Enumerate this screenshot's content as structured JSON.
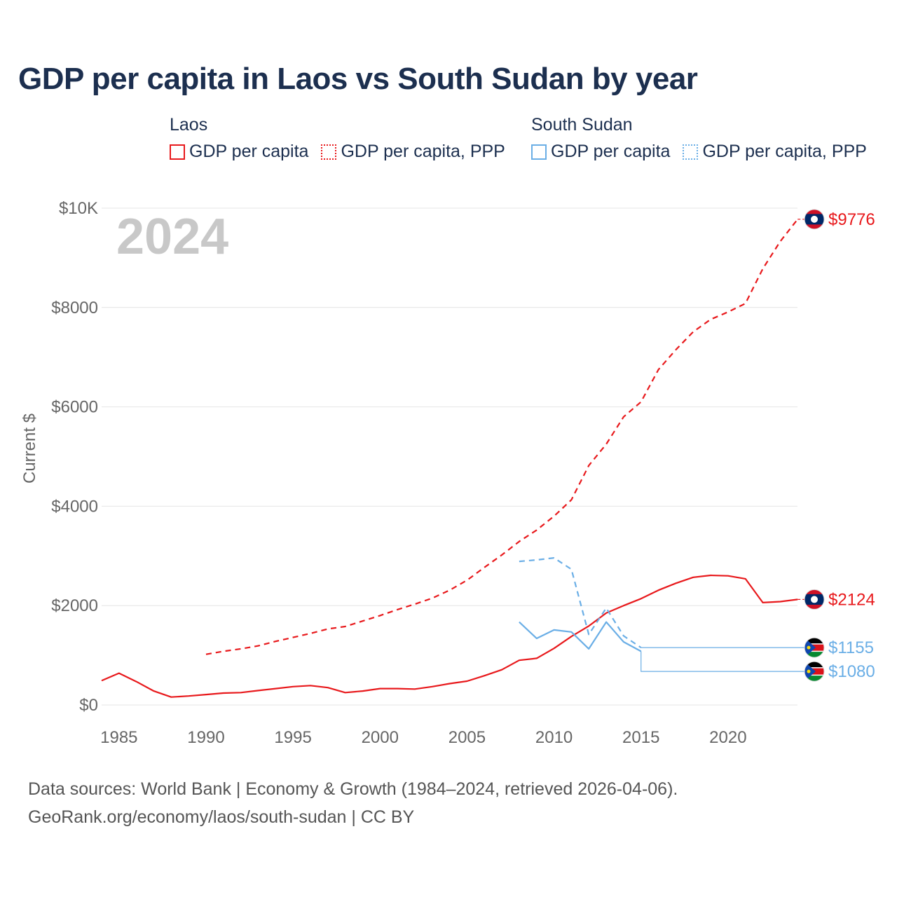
{
  "title": "GDP per capita in Laos vs South Sudan by year",
  "legend": [
    {
      "country": "Laos",
      "items": [
        {
          "label": "GDP per capita",
          "style": "solid",
          "color": "#e8191c"
        },
        {
          "label": "GDP per capita, PPP",
          "style": "dotted",
          "color": "#e8191c"
        }
      ]
    },
    {
      "country": "South Sudan",
      "items": [
        {
          "label": "GDP per capita",
          "style": "solid",
          "color": "#6aaee6"
        },
        {
          "label": "GDP per capita, PPP",
          "style": "dotted",
          "color": "#6aaee6"
        }
      ]
    }
  ],
  "footer": {
    "line1": "Data sources: World Bank | Economy & Growth (1984–2024, retrieved 2026-04-06).",
    "line2": "GeoRank.org/economy/laos/south-sudan | CC BY"
  },
  "chart_data": {
    "type": "line",
    "year_watermark": "2024",
    "ylabel": "Current $",
    "xlim": [
      1984,
      2024
    ],
    "ylim": [
      0,
      10000
    ],
    "xticks": [
      1985,
      1990,
      1995,
      2000,
      2005,
      2010,
      2015,
      2020
    ],
    "yticks": [
      {
        "value": 0,
        "label": "$0"
      },
      {
        "value": 2000,
        "label": "$2000"
      },
      {
        "value": 4000,
        "label": "$4000"
      },
      {
        "value": 6000,
        "label": "$6000"
      },
      {
        "value": 8000,
        "label": "$8000"
      },
      {
        "value": 10000,
        "label": "$10K"
      }
    ],
    "series": [
      {
        "name": "Laos GDP per capita, PPP",
        "country": "Laos",
        "color": "#e8191c",
        "dash": "8,6",
        "end_label": "$9776",
        "x": [
          1990,
          1991,
          1992,
          1993,
          1994,
          1995,
          1996,
          1997,
          1998,
          1999,
          2000,
          2001,
          2002,
          2003,
          2004,
          2005,
          2006,
          2007,
          2008,
          2009,
          2010,
          2011,
          2012,
          2013,
          2014,
          2015,
          2016,
          2017,
          2018,
          2019,
          2020,
          2021,
          2022,
          2023,
          2024
        ],
        "y": [
          1020,
          1080,
          1130,
          1190,
          1280,
          1360,
          1440,
          1530,
          1580,
          1690,
          1800,
          1920,
          2030,
          2150,
          2310,
          2510,
          2770,
          3020,
          3290,
          3520,
          3800,
          4130,
          4820,
          5250,
          5800,
          6100,
          6750,
          7150,
          7510,
          7760,
          7910,
          8080,
          8780,
          9330,
          9776
        ]
      },
      {
        "name": "Laos GDP per capita",
        "country": "Laos",
        "color": "#e8191c",
        "dash": "",
        "end_label": "$2124",
        "x": [
          1984,
          1985,
          1986,
          1987,
          1988,
          1989,
          1990,
          1991,
          1992,
          1993,
          1994,
          1995,
          1996,
          1997,
          1998,
          1999,
          2000,
          2001,
          2002,
          2003,
          2004,
          2005,
          2006,
          2007,
          2008,
          2009,
          2010,
          2011,
          2012,
          2013,
          2014,
          2015,
          2016,
          2017,
          2018,
          2019,
          2020,
          2021,
          2022,
          2023,
          2024
        ],
        "y": [
          490,
          640,
          470,
          280,
          160,
          180,
          210,
          240,
          250,
          290,
          330,
          370,
          390,
          350,
          250,
          280,
          330,
          330,
          320,
          370,
          430,
          480,
          590,
          710,
          900,
          940,
          1140,
          1380,
          1590,
          1850,
          2000,
          2140,
          2310,
          2450,
          2570,
          2610,
          2600,
          2540,
          2060,
          2080,
          2124
        ]
      },
      {
        "name": "South Sudan GDP per capita, PPP",
        "country": "South Sudan",
        "color": "#6aaee6",
        "dash": "8,6",
        "end_label": "$1155",
        "x": [
          2008,
          2009,
          2010,
          2011,
          2012,
          2013,
          2014,
          2015
        ],
        "y": [
          2890,
          2920,
          2960,
          2730,
          1420,
          1950,
          1390,
          1155
        ]
      },
      {
        "name": "South Sudan GDP per capita",
        "country": "South Sudan",
        "color": "#6aaee6",
        "dash": "",
        "end_label": "$1080",
        "x": [
          2008,
          2009,
          2010,
          2011,
          2012,
          2013,
          2014,
          2015
        ],
        "y": [
          1670,
          1340,
          1510,
          1470,
          1130,
          1670,
          1270,
          1080
        ]
      }
    ]
  }
}
